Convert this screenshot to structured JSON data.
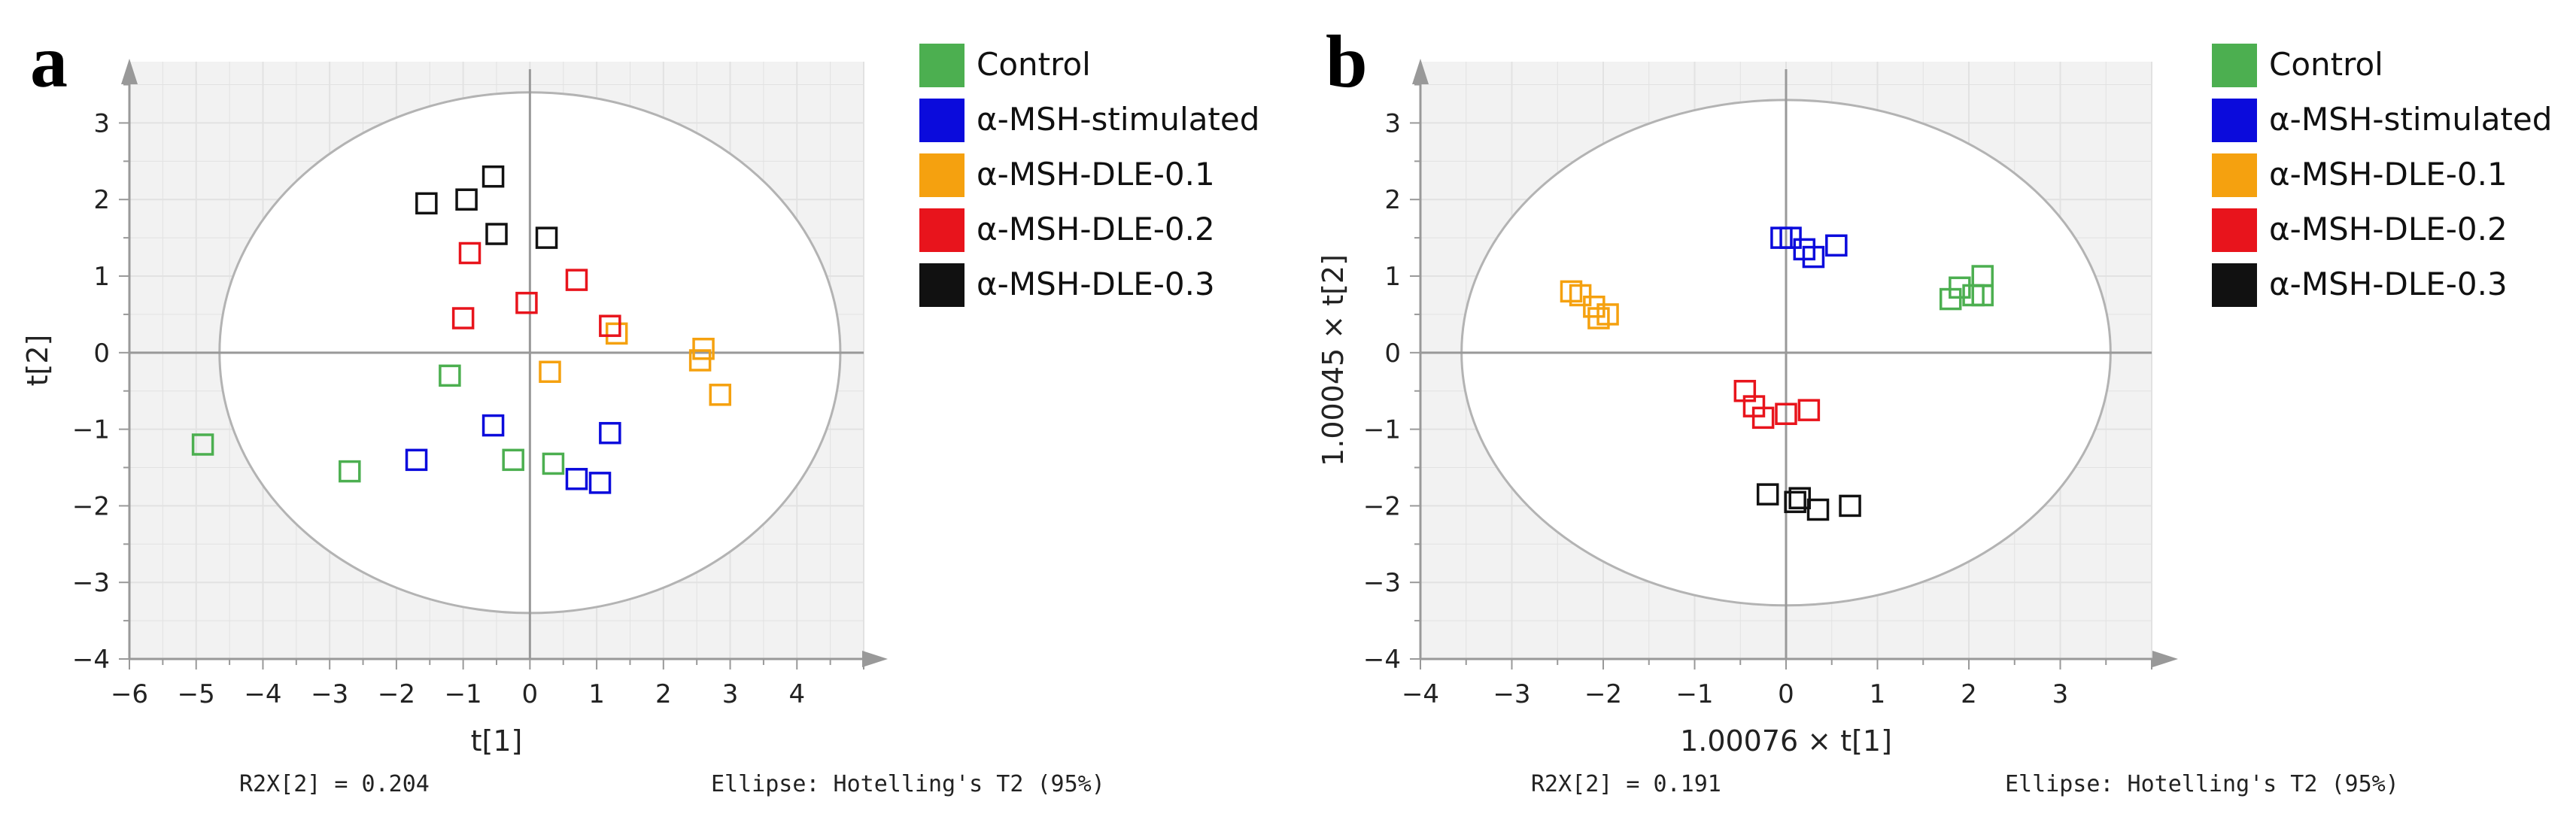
{
  "colors": {
    "plot_background": "#f2f2f2",
    "grid": "#e2e2e2",
    "axis": "#999999",
    "ellipse": "#b3b3b3",
    "Control": "#4caf50",
    "α-MSH-stimulated": "#0b0bdc",
    "α-MSH-DLE-0.1": "#f5a10f",
    "α-MSH-DLE-0.2": "#e8141c",
    "α-MSH-DLE-0.3": "#111111"
  },
  "chart_data": [
    {
      "panel": "a",
      "type": "scatter",
      "xlabel": "t[1]",
      "ylabel": "t[2]",
      "xlim": [
        -6,
        5
      ],
      "ylim": [
        -4,
        3.8
      ],
      "xticks": [
        -6,
        -5,
        -4,
        -3,
        -2,
        -1,
        0,
        1,
        2,
        3,
        4
      ],
      "yticks": [
        3,
        2,
        1,
        0,
        -1,
        -2,
        -3,
        -4
      ],
      "grid": true,
      "legend_position": "right",
      "ellipse": {
        "cx": 0,
        "cy": 0,
        "rx": 4.65,
        "ry": 3.4
      },
      "footer_left": "R2X[2] = 0.204",
      "footer_right": "Ellipse: Hotelling's T2 (95%)",
      "series": [
        {
          "name": "Control",
          "x": [
            -4.9,
            -2.7,
            -1.2,
            -0.25,
            0.35
          ],
          "y": [
            -1.2,
            -1.55,
            -0.3,
            -1.4,
            -1.45
          ]
        },
        {
          "name": "α-MSH-stimulated",
          "x": [
            -1.7,
            -0.55,
            0.7,
            1.05,
            1.2
          ],
          "y": [
            -1.4,
            -0.95,
            -1.65,
            -1.7,
            -1.05
          ]
        },
        {
          "name": "α-MSH-DLE-0.1",
          "x": [
            0.3,
            1.3,
            2.55,
            2.6,
            2.85
          ],
          "y": [
            -0.25,
            0.25,
            -0.1,
            0.05,
            -0.55
          ]
        },
        {
          "name": "α-MSH-DLE-0.2",
          "x": [
            -1.0,
            -0.9,
            -0.05,
            0.7,
            1.2
          ],
          "y": [
            0.45,
            1.3,
            0.65,
            0.95,
            0.35
          ]
        },
        {
          "name": "α-MSH-DLE-0.3",
          "x": [
            -1.55,
            -0.95,
            -0.55,
            -0.5,
            0.25
          ],
          "y": [
            1.95,
            2.0,
            2.3,
            1.55,
            1.5
          ]
        }
      ]
    },
    {
      "panel": "b",
      "type": "scatter",
      "xlabel": "1.00076 × t[1]",
      "ylabel": "1.00045 × t[2]",
      "xlim": [
        -4,
        4
      ],
      "ylim": [
        -4,
        3.8
      ],
      "xticks": [
        -4,
        -3,
        -2,
        -1,
        0,
        1,
        2,
        3
      ],
      "yticks": [
        3,
        2,
        1,
        0,
        -1,
        -2,
        -3,
        -4
      ],
      "grid": true,
      "legend_position": "right",
      "ellipse": {
        "cx": 0,
        "cy": 0,
        "rx": 3.55,
        "ry": 3.3
      },
      "footer_left": "R2X[2] = 0.191",
      "footer_right": "Ellipse: Hotelling's T2 (95%)",
      "series": [
        {
          "name": "Control",
          "x": [
            1.8,
            1.9,
            2.05,
            2.15,
            2.15
          ],
          "y": [
            0.7,
            0.85,
            0.75,
            0.75,
            1.0
          ]
        },
        {
          "name": "α-MSH-stimulated",
          "x": [
            -0.05,
            0.05,
            0.2,
            0.3,
            0.55
          ],
          "y": [
            1.5,
            1.5,
            1.35,
            1.25,
            1.4
          ]
        },
        {
          "name": "α-MSH-DLE-0.1",
          "x": [
            -2.35,
            -2.25,
            -2.1,
            -2.05,
            -1.95
          ],
          "y": [
            0.8,
            0.75,
            0.6,
            0.45,
            0.5
          ]
        },
        {
          "name": "α-MSH-DLE-0.2",
          "x": [
            -0.45,
            -0.35,
            -0.25,
            0.0,
            0.25
          ],
          "y": [
            -0.5,
            -0.7,
            -0.85,
            -0.8,
            -0.75
          ]
        },
        {
          "name": "α-MSH-DLE-0.3",
          "x": [
            -0.2,
            0.1,
            0.15,
            0.35,
            0.7
          ],
          "y": [
            -1.85,
            -1.95,
            -1.9,
            -2.05,
            -2.0
          ]
        }
      ]
    }
  ]
}
